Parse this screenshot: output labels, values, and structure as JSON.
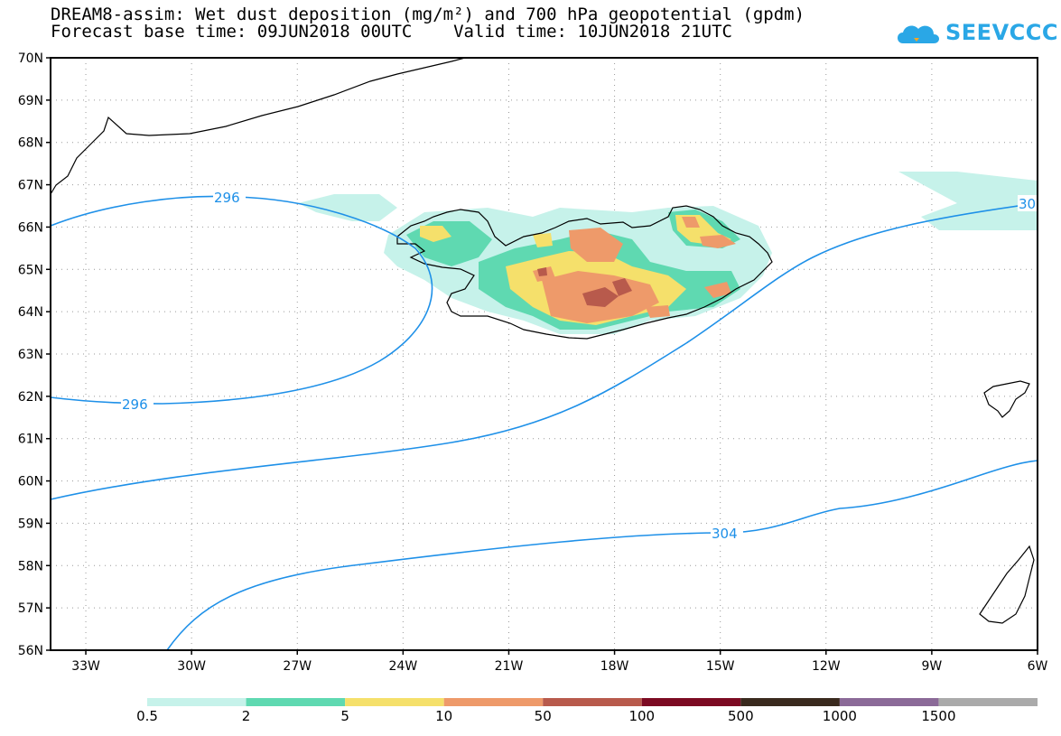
{
  "title": {
    "line1": "DREAM8-assim: Wet dust deposition (mg/m²) and 700 hPa geopotential (gpdm)",
    "line2": "Forecast base time: 09JUN2018 00UTC    Valid time: 10JUN2018 21UTC"
  },
  "logo": {
    "text": "SEEVCCC",
    "icon": "cloud-icon",
    "color": "#2aa7e6"
  },
  "map": {
    "lat_ticks": [
      "70N",
      "69N",
      "68N",
      "67N",
      "66N",
      "65N",
      "64N",
      "63N",
      "62N",
      "61N",
      "60N",
      "59N",
      "58N",
      "57N",
      "56N"
    ],
    "lon_ticks": [
      "33W",
      "30W",
      "27W",
      "24W",
      "21W",
      "18W",
      "15W",
      "12W",
      "9W",
      "6W"
    ],
    "contour_color": "#1e90e8",
    "contour_labels": [
      "296",
      "296",
      "304",
      "30"
    ]
  },
  "colorbar": {
    "labels": [
      "0.5",
      "2",
      "5",
      "10",
      "50",
      "100",
      "500",
      "1000",
      "1500"
    ],
    "colors": [
      "#c6f2ea",
      "#5fd9b1",
      "#f5e06b",
      "#ee9a6a",
      "#b85a4c",
      "#7c0a22",
      "#3a2a1e",
      "#8b6a98",
      "#aaaaaa"
    ]
  }
}
